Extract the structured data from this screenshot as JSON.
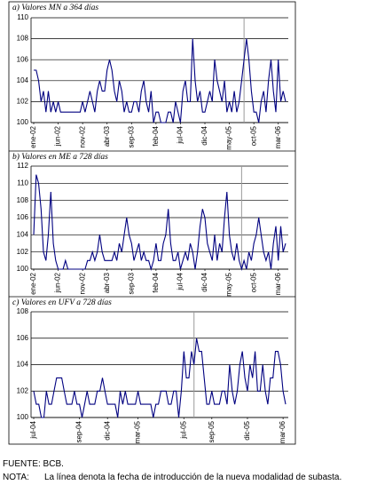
{
  "chart_data": [
    {
      "type": "line",
      "title": "a) Valores MN a 364 días",
      "categories": [
        "ene-02",
        null,
        null,
        null,
        null,
        null,
        null,
        null,
        null,
        null,
        "jun-02",
        null,
        null,
        null,
        null,
        null,
        null,
        null,
        null,
        null,
        "nov-02",
        null,
        null,
        null,
        null,
        null,
        null,
        null,
        null,
        null,
        "abr-03",
        null,
        null,
        null,
        null,
        null,
        null,
        null,
        null,
        null,
        "sep-03",
        null,
        null,
        null,
        null,
        null,
        null,
        null,
        null,
        null,
        "feb-04",
        null,
        null,
        null,
        null,
        null,
        null,
        null,
        null,
        null,
        "jul-04",
        null,
        null,
        null,
        null,
        null,
        null,
        null,
        null,
        null,
        "dic-04",
        null,
        null,
        null,
        null,
        null,
        null,
        null,
        null,
        null,
        "may-05",
        null,
        null,
        null,
        null,
        null,
        null,
        null,
        null,
        null,
        "oct-05",
        null,
        null,
        null,
        null,
        null,
        null,
        null,
        null,
        null,
        "mar-06",
        null,
        null,
        null
      ],
      "values": [
        105,
        105,
        104,
        102,
        103,
        101,
        103,
        101,
        102,
        101,
        102,
        101,
        101,
        101,
        101,
        101,
        101,
        101,
        101,
        101,
        102,
        101,
        102,
        103,
        102,
        101,
        103,
        104,
        103,
        103,
        105,
        106,
        105,
        103,
        102,
        104,
        103,
        101,
        102,
        101,
        101,
        102,
        102,
        101,
        103,
        104,
        102,
        101,
        103,
        100,
        101,
        101,
        100,
        100,
        100,
        101,
        101,
        100,
        102,
        101,
        100,
        103,
        104,
        102,
        102,
        108,
        104,
        102,
        103,
        101,
        101,
        102,
        103,
        102,
        106,
        104,
        103,
        102,
        104,
        101,
        102,
        101,
        103,
        101,
        102,
        104,
        106,
        108,
        106,
        103,
        101,
        101,
        100,
        102,
        103,
        101,
        104,
        106,
        103,
        101,
        106,
        102,
        103,
        102
      ],
      "color": "#000080",
      "vline_x": 86,
      "vline_color": "#9a9a9a",
      "ylim": [
        100,
        110
      ],
      "yticks": [
        100,
        102,
        104,
        106,
        108,
        110
      ],
      "grid": true
    },
    {
      "type": "line",
      "title": "b) Valores en ME a 728 días",
      "categories": [
        "ene-02",
        null,
        null,
        null,
        null,
        null,
        null,
        null,
        null,
        null,
        "jun-02",
        null,
        null,
        null,
        null,
        null,
        null,
        null,
        null,
        null,
        "nov-02",
        null,
        null,
        null,
        null,
        null,
        null,
        null,
        null,
        null,
        "abr-03",
        null,
        null,
        null,
        null,
        null,
        null,
        null,
        null,
        null,
        "sep-03",
        null,
        null,
        null,
        null,
        null,
        null,
        null,
        null,
        null,
        "feb-04",
        null,
        null,
        null,
        null,
        null,
        null,
        null,
        null,
        null,
        "jul-04",
        null,
        null,
        null,
        null,
        null,
        null,
        null,
        null,
        null,
        "dic-04",
        null,
        null,
        null,
        null,
        null,
        null,
        null,
        null,
        null,
        "may-05",
        null,
        null,
        null,
        null,
        null,
        null,
        null,
        null,
        null,
        "oct-05",
        null,
        null,
        null,
        null,
        null,
        null,
        null,
        null,
        null,
        "mar-06",
        null,
        null,
        null
      ],
      "values": [
        104,
        111,
        110,
        107,
        102,
        101,
        104,
        109,
        103,
        101,
        100,
        100,
        100,
        101,
        100,
        100,
        100,
        100,
        100,
        100,
        100,
        100,
        101,
        101,
        102,
        101,
        102,
        104,
        102,
        101,
        101,
        101,
        101,
        102,
        101,
        103,
        102,
        104,
        106,
        104,
        103,
        101,
        102,
        103,
        101,
        102,
        101,
        101,
        100,
        101,
        103,
        101,
        101,
        103,
        104,
        107,
        103,
        101,
        101,
        102,
        100,
        101,
        102,
        101,
        103,
        102,
        100,
        102,
        105,
        107,
        106,
        103,
        102,
        101,
        104,
        101,
        103,
        102,
        106,
        109,
        104,
        102,
        101,
        103,
        101,
        100,
        101,
        100,
        102,
        101,
        103,
        104,
        106,
        104,
        102,
        101,
        102,
        100,
        103,
        105,
        101,
        105,
        102,
        103
      ],
      "color": "#000080",
      "vline_x": 85,
      "vline_color": "#9a9a9a",
      "ylim": [
        100,
        112
      ],
      "yticks": [
        100,
        102,
        104,
        106,
        108,
        110,
        112
      ],
      "grid": true
    },
    {
      "type": "line",
      "title": "c) Valores en UFV a 728 días",
      "categories": [
        "jul-04",
        null,
        null,
        null,
        null,
        null,
        null,
        null,
        null,
        null,
        null,
        null,
        null,
        null,
        null,
        null,
        null,
        null,
        "sep-04",
        null,
        null,
        null,
        null,
        null,
        null,
        null,
        null,
        null,
        null,
        "dic-04",
        null,
        null,
        null,
        null,
        null,
        null,
        null,
        null,
        null,
        null,
        null,
        "mar-05",
        null,
        null,
        null,
        null,
        null,
        null,
        null,
        null,
        null,
        null,
        null,
        null,
        null,
        null,
        null,
        null,
        null,
        "jul-05",
        null,
        null,
        null,
        null,
        null,
        null,
        null,
        null,
        null,
        null,
        "sep-05",
        null,
        null,
        null,
        null,
        null,
        null,
        null,
        null,
        null,
        null,
        null,
        null,
        null,
        "dic-05",
        null,
        null,
        null,
        null,
        null,
        null,
        null,
        null,
        null,
        null,
        null,
        null,
        null,
        "mar-06",
        null
      ],
      "values": [
        102,
        101,
        101,
        100,
        100,
        102,
        101,
        101,
        102,
        103,
        103,
        103,
        102,
        101,
        101,
        101,
        102,
        101,
        101,
        100,
        101,
        102,
        101,
        101,
        101,
        102,
        102,
        103,
        102,
        101,
        101,
        101,
        101,
        100,
        102,
        101,
        102,
        101,
        101,
        101,
        101,
        102,
        101,
        101,
        101,
        101,
        101,
        100,
        101,
        101,
        102,
        102,
        102,
        101,
        101,
        102,
        102,
        100,
        102,
        105,
        103,
        103,
        105,
        104,
        106,
        105,
        105,
        103,
        101,
        101,
        102,
        101,
        101,
        101,
        102,
        102,
        101,
        104,
        102,
        101,
        102,
        104,
        105,
        103,
        102,
        104,
        103,
        105,
        102,
        102,
        104,
        102,
        101,
        103,
        103,
        105,
        105,
        104,
        102,
        101
      ],
      "color": "#000080",
      "vline_x": 63,
      "vline_color": "#9a9a9a",
      "ylim": [
        100,
        108
      ],
      "yticks": [
        100,
        102,
        104,
        106,
        108
      ],
      "grid": true
    }
  ],
  "footer": {
    "source": "FUENTE: BCB.",
    "note_label": "NOTA:",
    "note": "La línea denota la fecha de introducción de la nueva modalidad de subasta."
  }
}
